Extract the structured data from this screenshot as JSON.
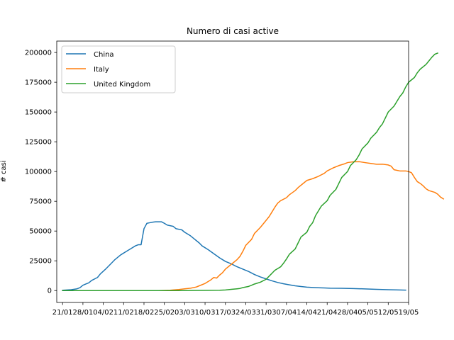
{
  "chart_data": {
    "type": "line",
    "title": "Numero di casi active",
    "xlabel": "",
    "ylabel": "# casi",
    "x_tick_labels": [
      "21/01",
      "28/01",
      "04/02",
      "11/02",
      "18/02",
      "25/02",
      "03/03",
      "10/03",
      "17/03",
      "24/03",
      "31/03",
      "07/04",
      "14/04",
      "21/04",
      "28/04",
      "05/05",
      "12/05",
      "19/05"
    ],
    "x_start_label": "21/01",
    "xlim_days": [
      -2,
      119
    ],
    "ylim": [
      -9980,
      209580
    ],
    "y_ticks": [
      0,
      25000,
      50000,
      75000,
      100000,
      125000,
      150000,
      175000,
      200000
    ],
    "grid": false,
    "legend_position": "upper left",
    "series": [
      {
        "name": "China",
        "color": "#1f77b4",
        "points": [
          [
            0,
            300
          ],
          [
            3,
            700
          ],
          [
            5,
            1500
          ],
          [
            6,
            2500
          ],
          [
            7,
            4500
          ],
          [
            8,
            5500
          ],
          [
            9,
            6500
          ],
          [
            10,
            8500
          ],
          [
            12,
            11000
          ],
          [
            13,
            14000
          ],
          [
            15,
            18500
          ],
          [
            17,
            23500
          ],
          [
            18,
            26000
          ],
          [
            20,
            30000
          ],
          [
            22,
            33000
          ],
          [
            24,
            36000
          ],
          [
            25,
            37500
          ],
          [
            26,
            38500
          ],
          [
            27,
            38500
          ],
          [
            28,
            52000
          ],
          [
            29,
            56500
          ],
          [
            30,
            57000
          ],
          [
            31,
            57500
          ],
          [
            32,
            57800
          ],
          [
            34,
            57800
          ],
          [
            35,
            56500
          ],
          [
            36,
            55000
          ],
          [
            38,
            54000
          ],
          [
            39,
            52000
          ],
          [
            41,
            51000
          ],
          [
            42,
            49000
          ],
          [
            44,
            46000
          ],
          [
            45,
            44000
          ],
          [
            47,
            40000
          ],
          [
            48,
            37500
          ],
          [
            50,
            34500
          ],
          [
            52,
            31000
          ],
          [
            54,
            27500
          ],
          [
            56,
            24500
          ],
          [
            58,
            22500
          ],
          [
            60,
            20000
          ],
          [
            62,
            18000
          ],
          [
            64,
            16000
          ],
          [
            66,
            13500
          ],
          [
            68,
            11500
          ],
          [
            70,
            9800
          ],
          [
            72,
            8200
          ],
          [
            74,
            6800
          ],
          [
            76,
            5700
          ],
          [
            78,
            4800
          ],
          [
            80,
            4000
          ],
          [
            82,
            3400
          ],
          [
            84,
            2900
          ],
          [
            86,
            2600
          ],
          [
            88,
            2400
          ],
          [
            90,
            2200
          ],
          [
            92,
            2000
          ],
          [
            96,
            1900
          ],
          [
            100,
            1700
          ],
          [
            104,
            1400
          ],
          [
            108,
            1000
          ],
          [
            112,
            700
          ],
          [
            116,
            500
          ],
          [
            118,
            350
          ]
        ]
      },
      {
        "name": "Italy",
        "color": "#ff7f0e",
        "points": [
          [
            0,
            0
          ],
          [
            30,
            0
          ],
          [
            33,
            0
          ],
          [
            35,
            100
          ],
          [
            37,
            300
          ],
          [
            38,
            500
          ],
          [
            40,
            900
          ],
          [
            42,
            1500
          ],
          [
            44,
            2000
          ],
          [
            46,
            3000
          ],
          [
            47,
            4000
          ],
          [
            49,
            6000
          ],
          [
            50,
            7500
          ],
          [
            51,
            9000
          ],
          [
            52,
            11000
          ],
          [
            53,
            10500
          ],
          [
            54,
            13000
          ],
          [
            55,
            15000
          ],
          [
            56,
            18000
          ],
          [
            58,
            22000
          ],
          [
            60,
            26000
          ],
          [
            61,
            28700
          ],
          [
            62,
            33000
          ],
          [
            63,
            38000
          ],
          [
            65,
            43000
          ],
          [
            66,
            48000
          ],
          [
            68,
            53000
          ],
          [
            69,
            56000
          ],
          [
            71,
            62000
          ],
          [
            72,
            66000
          ],
          [
            73,
            70000
          ],
          [
            74,
            73500
          ],
          [
            75,
            75500
          ],
          [
            77,
            78000
          ],
          [
            78,
            80500
          ],
          [
            80,
            84000
          ],
          [
            81,
            86500
          ],
          [
            83,
            90500
          ],
          [
            84,
            92500
          ],
          [
            86,
            94000
          ],
          [
            88,
            96000
          ],
          [
            90,
            98500
          ],
          [
            91,
            100500
          ],
          [
            93,
            103000
          ],
          [
            95,
            105000
          ],
          [
            97,
            106500
          ],
          [
            98,
            107500
          ],
          [
            100,
            108200
          ],
          [
            102,
            108300
          ],
          [
            104,
            107500
          ],
          [
            106,
            106800
          ],
          [
            108,
            106100
          ],
          [
            110,
            106200
          ],
          [
            112,
            105500
          ],
          [
            113,
            104500
          ],
          [
            114,
            101500
          ],
          [
            116,
            100500
          ],
          [
            118,
            100500
          ],
          [
            119,
            100000
          ],
          [
            120,
            99000
          ],
          [
            121,
            95000
          ],
          [
            122,
            91500
          ],
          [
            123,
            90000
          ],
          [
            124,
            88000
          ],
          [
            125,
            85500
          ],
          [
            126,
            84000
          ],
          [
            128,
            82500
          ],
          [
            129,
            81000
          ],
          [
            130,
            78500
          ],
          [
            131,
            77000
          ]
        ]
      },
      {
        "name": "United Kingdom",
        "color": "#2ca02c",
        "points": [
          [
            0,
            0
          ],
          [
            40,
            0
          ],
          [
            46,
            100
          ],
          [
            50,
            200
          ],
          [
            54,
            300
          ],
          [
            56,
            500
          ],
          [
            58,
            1000
          ],
          [
            60,
            1500
          ],
          [
            61,
            1800
          ],
          [
            62,
            2500
          ],
          [
            64,
            3500
          ],
          [
            65,
            4500
          ],
          [
            66,
            5500
          ],
          [
            68,
            7000
          ],
          [
            70,
            9500
          ],
          [
            71,
            12000
          ],
          [
            72,
            14500
          ],
          [
            73,
            17000
          ],
          [
            75,
            20000
          ],
          [
            76,
            23000
          ],
          [
            77,
            26500
          ],
          [
            78,
            30500
          ],
          [
            80,
            35000
          ],
          [
            81,
            40000
          ],
          [
            82,
            45000
          ],
          [
            84,
            49000
          ],
          [
            85,
            54000
          ],
          [
            86,
            57000
          ],
          [
            87,
            63000
          ],
          [
            88,
            67000
          ],
          [
            89,
            71000
          ],
          [
            91,
            75500
          ],
          [
            92,
            80000
          ],
          [
            94,
            85000
          ],
          [
            95,
            90000
          ],
          [
            96,
            95000
          ],
          [
            98,
            100000
          ],
          [
            99,
            105000
          ],
          [
            101,
            110000
          ],
          [
            102,
            114000
          ],
          [
            103,
            119000
          ],
          [
            105,
            124000
          ],
          [
            106,
            128000
          ],
          [
            108,
            133000
          ],
          [
            109,
            137000
          ],
          [
            110,
            140000
          ],
          [
            111,
            145000
          ],
          [
            112,
            150000
          ],
          [
            114,
            155000
          ],
          [
            115,
            159000
          ],
          [
            116,
            163000
          ],
          [
            117,
            166000
          ],
          [
            118,
            171000
          ],
          [
            119,
            175000
          ],
          [
            121,
            179000
          ],
          [
            122,
            183000
          ],
          [
            123,
            186000
          ],
          [
            125,
            190000
          ],
          [
            126,
            193000
          ],
          [
            127,
            196000
          ],
          [
            128,
            198500
          ],
          [
            129,
            199500
          ]
        ]
      }
    ]
  }
}
